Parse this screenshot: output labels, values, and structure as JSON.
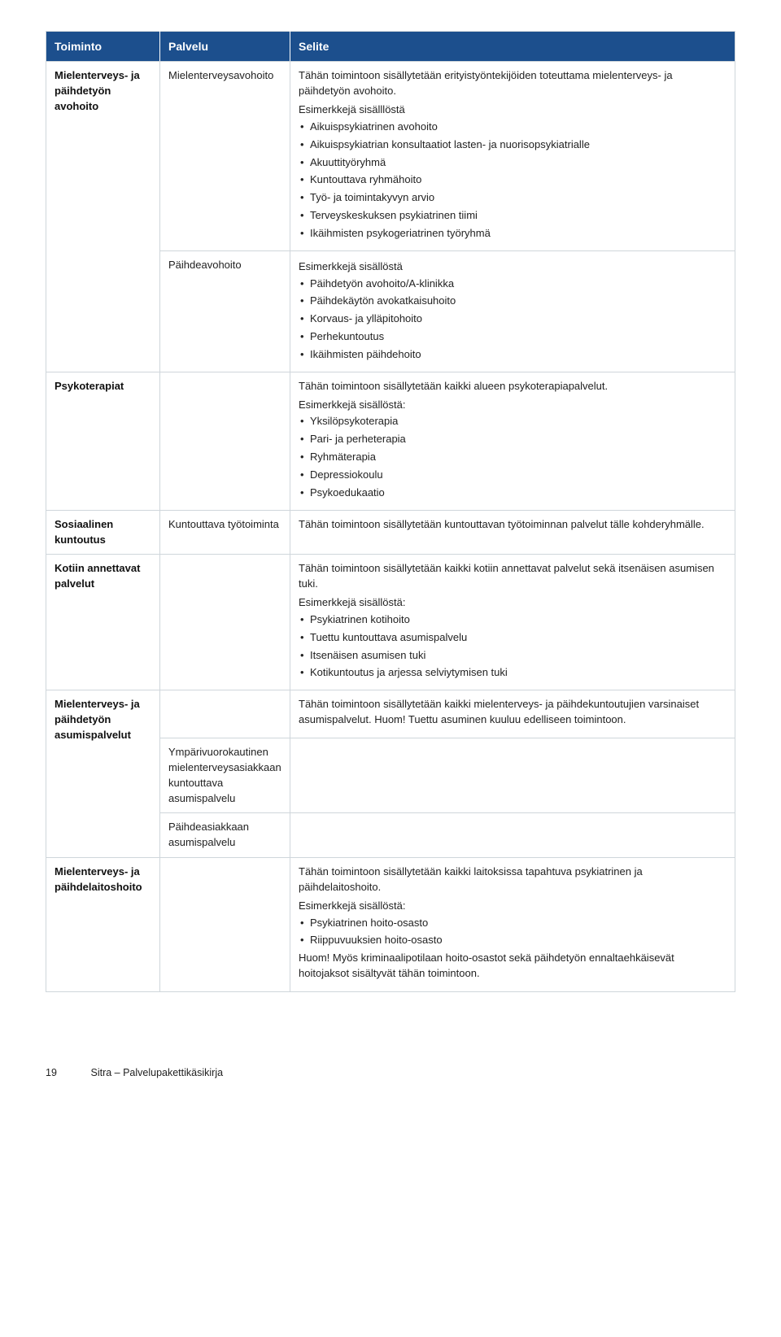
{
  "headers": {
    "c1": "Toiminto",
    "c2": "Palvelu",
    "c3": "Selite"
  },
  "rows": [
    {
      "func": "Mielenterveys- ja päihdetyön avohoito",
      "funcRowspan": 2,
      "svc": "Mielenterveysavohoito",
      "intro": "Tähän toimintoon sisällytetään erityistyöntekijöiden toteuttama mielenterveys- ja päihdetyön avohoito.",
      "sub": "Esimerkkejä sisälllöstä",
      "items": [
        "Aikuispsykiatrinen avohoito",
        "Aikuispsykiatrian konsultaatiot lasten- ja nuorisopsykiatrialle",
        "Akuuttityöryhmä",
        "Kuntouttava ryhmähoito",
        "Työ- ja toimintakyvyn arvio",
        "Terveyskeskuksen psykiatrinen tiimi",
        "Ikäihmisten psykogeriatrinen työryhmä"
      ]
    },
    {
      "svc": "Päihdeavohoito",
      "sub": "Esimerkkejä sisällöstä",
      "items": [
        "Päihdetyön avohoito/A-klinikka",
        "Päihdekäytön avokatkaisuhoito",
        "Korvaus- ja ylläpitohoito",
        "Perhekuntoutus",
        "Ikäihmisten päihdehoito"
      ]
    },
    {
      "func": "Psykoterapiat",
      "svc": "",
      "intro": "Tähän toimintoon sisällytetään kaikki alueen psykoterapiapalvelut.",
      "sub": "Esimerkkejä sisällöstä:",
      "items": [
        "Yksilöpsykoterapia",
        "Pari- ja perheterapia",
        "Ryhmäterapia",
        "Depressiokoulu",
        "Psykoedukaatio"
      ]
    },
    {
      "func": "Sosiaalinen kuntoutus",
      "svc": "Kuntouttava työtoiminta",
      "intro": "Tähän toimintoon sisällytetään kuntouttavan työtoiminnan palvelut tälle kohderyhmälle."
    },
    {
      "func": "Kotiin annettavat palvelut",
      "svc": "",
      "intro": "Tähän toimintoon sisällytetään kaikki kotiin annettavat palvelut sekä itsenäisen asumisen tuki.",
      "sub": "Esimerkkejä sisällöstä:",
      "items": [
        "Psykiatrinen kotihoito",
        "Tuettu kuntouttava asumispalvelu",
        "Itsenäisen asumisen tuki",
        "Kotikuntoutus ja arjessa selviytymisen tuki"
      ]
    },
    {
      "func": "Mielenterveys- ja päihdetyön asumispalvelut",
      "funcRowspan": 3,
      "svc": "",
      "intro": "Tähän toimintoon sisällytetään kaikki mielenterveys- ja päihdekuntoutujien varsinaiset asumispalvelut. Huom! Tuettu asuminen kuuluu edelliseen toimintoon."
    },
    {
      "svc": "Ympärivuorokautinen mielenterveysasiakkaan kuntouttava asumispalvelu"
    },
    {
      "svc": "Päihdeasiakkaan asumispalvelu"
    },
    {
      "func": "Mielenterveys- ja päihdelaitoshoito",
      "svc": "",
      "intro": "Tähän toimintoon sisällytetään kaikki laitoksissa tapahtuva psykiatrinen ja päihdelaitoshoito.",
      "sub": "Esimerkkejä sisällöstä:",
      "items": [
        "Psykiatrinen hoito-osasto",
        "Riippuvuuksien hoito-osasto"
      ],
      "outro": "Huom! Myös kriminaalipotilaan hoito-osastot sekä päihdetyön ennaltaehkäisevät hoitojaksot sisältyvät tähän toimintoon."
    }
  ],
  "footer": {
    "page": "19",
    "title": "Sitra – Palvelupakettikäsikirja"
  }
}
